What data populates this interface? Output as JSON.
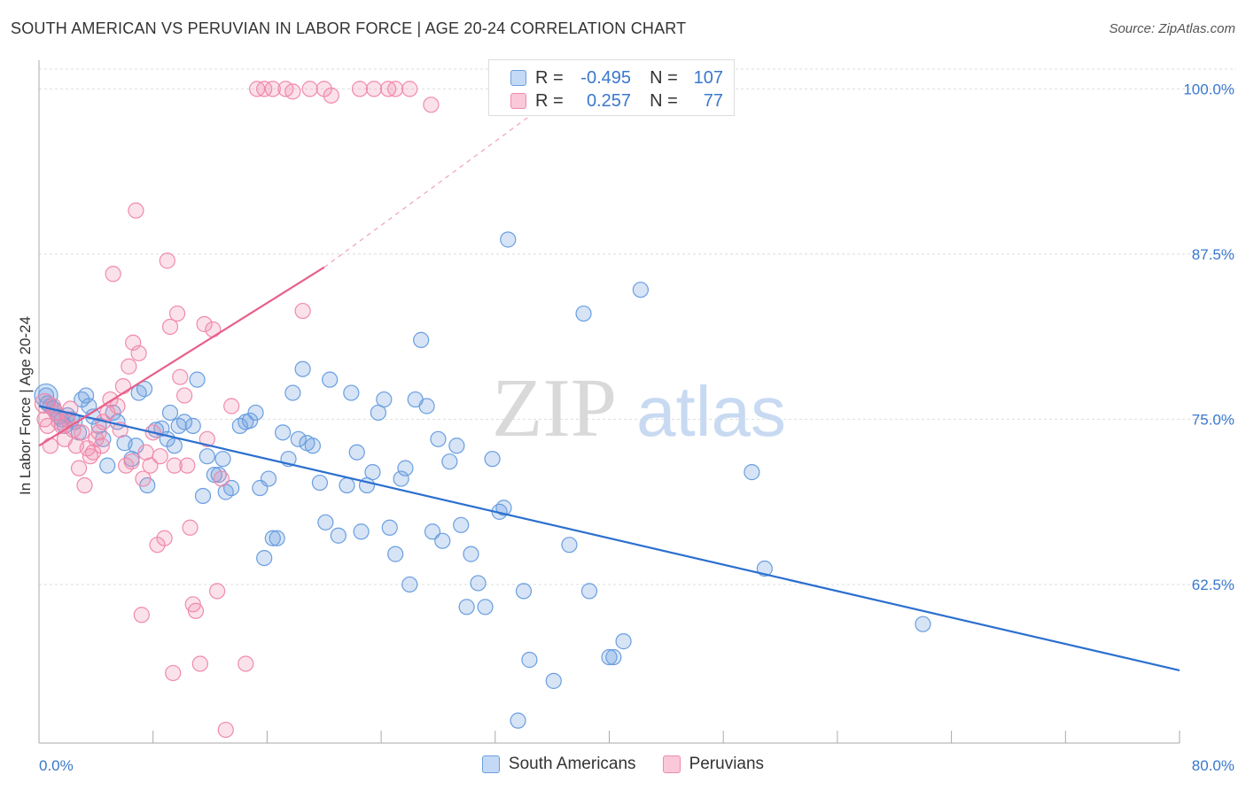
{
  "title": "SOUTH AMERICAN VS PERUVIAN IN LABOR FORCE | AGE 20-24 CORRELATION CHART",
  "source": "Source: ZipAtlas.com",
  "watermark": {
    "zip": "ZIP",
    "atlas": "atlas"
  },
  "legend": {
    "r_label": "R =",
    "n_label": "N =",
    "series": [
      {
        "name": "South Americans",
        "r": "-0.495",
        "n": "107"
      },
      {
        "name": "Peruvians",
        "r": "0.257",
        "n": "77"
      }
    ]
  },
  "chart_data": {
    "type": "scatter",
    "title": "SOUTH AMERICAN VS PERUVIAN IN LABOR FORCE | AGE 20-24 CORRELATION CHART",
    "xlabel": "",
    "ylabel": "In Labor Force | Age 20-24",
    "xlim": [
      0,
      80
    ],
    "ylim": [
      50.5,
      101.5
    ],
    "x_tick_labels": [
      "0.0%",
      "80.0%"
    ],
    "y_ticks": [
      62.5,
      75.0,
      87.5,
      100.0
    ],
    "y_tick_labels": [
      "62.5%",
      "75.0%",
      "87.5%",
      "100.0%"
    ],
    "grid": true,
    "colors": {
      "south_americans": "#6a9ee0",
      "peruvians": "#f08aac",
      "blue_line": "#2b6fcf",
      "pink_line": "#e8608a"
    },
    "series": [
      {
        "name": "South Americans",
        "r": -0.495,
        "n": 107,
        "trend": {
          "x0": 0,
          "y0": 76.0,
          "x1": 80,
          "y1": 56.0
        },
        "points": [
          [
            0.5,
            76.8
          ],
          [
            0.6,
            76.2
          ],
          [
            0.8,
            76.0
          ],
          [
            1.0,
            75.8
          ],
          [
            1.2,
            75.5
          ],
          [
            1.4,
            75.2
          ],
          [
            1.6,
            75.0
          ],
          [
            2.0,
            75.3
          ],
          [
            2.3,
            75.0
          ],
          [
            2.5,
            74.8
          ],
          [
            3.0,
            76.5
          ],
          [
            3.3,
            76.8
          ],
          [
            3.8,
            75.2
          ],
          [
            4.2,
            74.5
          ],
          [
            4.5,
            73.5
          ],
          [
            4.8,
            71.5
          ],
          [
            5.2,
            75.5
          ],
          [
            5.5,
            74.8
          ],
          [
            6.0,
            73.2
          ],
          [
            6.5,
            72.0
          ],
          [
            7.0,
            77.0
          ],
          [
            7.4,
            77.3
          ],
          [
            7.6,
            70.0
          ],
          [
            8.2,
            74.2
          ],
          [
            8.6,
            74.3
          ],
          [
            9.0,
            73.5
          ],
          [
            9.2,
            75.5
          ],
          [
            9.5,
            73.0
          ],
          [
            9.8,
            74.5
          ],
          [
            10.2,
            74.8
          ],
          [
            10.8,
            74.5
          ],
          [
            11.1,
            78.0
          ],
          [
            11.5,
            69.2
          ],
          [
            11.8,
            72.2
          ],
          [
            12.3,
            70.8
          ],
          [
            12.6,
            70.8
          ],
          [
            12.9,
            72.0
          ],
          [
            13.1,
            69.5
          ],
          [
            13.5,
            69.8
          ],
          [
            14.1,
            74.5
          ],
          [
            14.5,
            74.8
          ],
          [
            14.8,
            74.9
          ],
          [
            15.2,
            75.5
          ],
          [
            15.5,
            69.8
          ],
          [
            15.8,
            64.5
          ],
          [
            16.1,
            70.5
          ],
          [
            16.4,
            66.0
          ],
          [
            16.7,
            66.0
          ],
          [
            17.1,
            74.0
          ],
          [
            17.5,
            72.0
          ],
          [
            17.8,
            77.0
          ],
          [
            18.2,
            73.5
          ],
          [
            18.5,
            78.8
          ],
          [
            18.8,
            73.2
          ],
          [
            19.2,
            73.0
          ],
          [
            19.7,
            70.2
          ],
          [
            20.1,
            67.2
          ],
          [
            20.4,
            78.0
          ],
          [
            21.0,
            66.2
          ],
          [
            21.6,
            70.0
          ],
          [
            21.9,
            77.0
          ],
          [
            22.3,
            72.5
          ],
          [
            22.6,
            66.5
          ],
          [
            23.0,
            70.0
          ],
          [
            23.4,
            71.0
          ],
          [
            23.8,
            75.5
          ],
          [
            24.2,
            76.5
          ],
          [
            24.6,
            66.8
          ],
          [
            25.0,
            64.8
          ],
          [
            25.4,
            70.5
          ],
          [
            25.7,
            71.3
          ],
          [
            26.0,
            62.5
          ],
          [
            26.4,
            76.5
          ],
          [
            26.8,
            81.0
          ],
          [
            27.2,
            76.0
          ],
          [
            27.6,
            66.5
          ],
          [
            28.0,
            73.5
          ],
          [
            28.3,
            65.8
          ],
          [
            28.8,
            71.8
          ],
          [
            29.3,
            73.0
          ],
          [
            29.6,
            67.0
          ],
          [
            30.0,
            60.8
          ],
          [
            30.3,
            64.8
          ],
          [
            30.8,
            62.6
          ],
          [
            31.3,
            60.8
          ],
          [
            31.8,
            72.0
          ],
          [
            32.3,
            68.0
          ],
          [
            32.6,
            68.3
          ],
          [
            32.9,
            88.6
          ],
          [
            33.6,
            52.2
          ],
          [
            34.0,
            62.0
          ],
          [
            34.4,
            56.8
          ],
          [
            36.1,
            55.2
          ],
          [
            37.2,
            65.5
          ],
          [
            38.2,
            83.0
          ],
          [
            38.6,
            62.0
          ],
          [
            40.0,
            57.0
          ],
          [
            40.3,
            57.0
          ],
          [
            41.0,
            58.2
          ],
          [
            42.2,
            84.8
          ],
          [
            50.0,
            71.0
          ],
          [
            50.9,
            63.7
          ],
          [
            62.0,
            59.5
          ],
          [
            1.8,
            74.5
          ],
          [
            2.8,
            74.0
          ],
          [
            3.5,
            76.0
          ],
          [
            6.8,
            73.0
          ]
        ]
      },
      {
        "name": "Peruvians",
        "r": 0.257,
        "n": 77,
        "trend": {
          "x0": 0,
          "y0": 73.0,
          "x1": 20,
          "y1": 86.5,
          "dash_to": {
            "x": 37,
            "y": 100.0
          }
        },
        "points": [
          [
            0.4,
            75.0
          ],
          [
            0.6,
            74.5
          ],
          [
            0.8,
            73.0
          ],
          [
            1.0,
            76.0
          ],
          [
            1.2,
            75.5
          ],
          [
            1.4,
            74.8
          ],
          [
            1.6,
            74.5
          ],
          [
            1.8,
            73.5
          ],
          [
            2.0,
            75.0
          ],
          [
            2.2,
            75.8
          ],
          [
            2.4,
            74.2
          ],
          [
            2.6,
            73.0
          ],
          [
            2.8,
            71.3
          ],
          [
            3.0,
            74.0
          ],
          [
            3.2,
            70.0
          ],
          [
            3.4,
            72.8
          ],
          [
            3.6,
            72.2
          ],
          [
            3.8,
            72.5
          ],
          [
            4.0,
            73.5
          ],
          [
            4.2,
            74.0
          ],
          [
            4.4,
            73.0
          ],
          [
            4.5,
            74.8
          ],
          [
            4.8,
            75.5
          ],
          [
            5.0,
            76.5
          ],
          [
            5.2,
            86.0
          ],
          [
            5.5,
            76.0
          ],
          [
            5.7,
            74.2
          ],
          [
            5.9,
            77.5
          ],
          [
            6.1,
            71.5
          ],
          [
            6.3,
            79.0
          ],
          [
            6.5,
            71.8
          ],
          [
            6.6,
            80.8
          ],
          [
            6.8,
            90.8
          ],
          [
            7.0,
            80.0
          ],
          [
            7.3,
            70.5
          ],
          [
            7.5,
            72.5
          ],
          [
            7.8,
            71.5
          ],
          [
            8.0,
            74.0
          ],
          [
            8.3,
            65.5
          ],
          [
            8.5,
            72.2
          ],
          [
            8.8,
            66.0
          ],
          [
            9.0,
            87.0
          ],
          [
            9.2,
            82.0
          ],
          [
            9.5,
            71.5
          ],
          [
            9.7,
            83.0
          ],
          [
            9.9,
            78.2
          ],
          [
            10.2,
            76.8
          ],
          [
            10.4,
            71.5
          ],
          [
            10.6,
            66.8
          ],
          [
            10.8,
            61.0
          ],
          [
            11.0,
            60.5
          ],
          [
            11.3,
            56.5
          ],
          [
            11.6,
            82.2
          ],
          [
            11.8,
            73.5
          ],
          [
            12.2,
            81.8
          ],
          [
            12.5,
            62.0
          ],
          [
            12.8,
            70.5
          ],
          [
            13.1,
            51.5
          ],
          [
            13.5,
            76.0
          ],
          [
            14.5,
            56.5
          ],
          [
            15.3,
            100.0
          ],
          [
            15.8,
            100.0
          ],
          [
            16.4,
            100.0
          ],
          [
            17.3,
            100.0
          ],
          [
            17.8,
            99.8
          ],
          [
            18.5,
            83.2
          ],
          [
            19.0,
            100.0
          ],
          [
            20.0,
            100.0
          ],
          [
            20.5,
            99.5
          ],
          [
            22.5,
            100.0
          ],
          [
            23.5,
            100.0
          ],
          [
            24.5,
            100.0
          ],
          [
            25.0,
            100.0
          ],
          [
            26.0,
            100.0
          ],
          [
            27.5,
            98.8
          ],
          [
            9.4,
            55.8
          ],
          [
            7.2,
            60.2
          ]
        ]
      }
    ]
  }
}
